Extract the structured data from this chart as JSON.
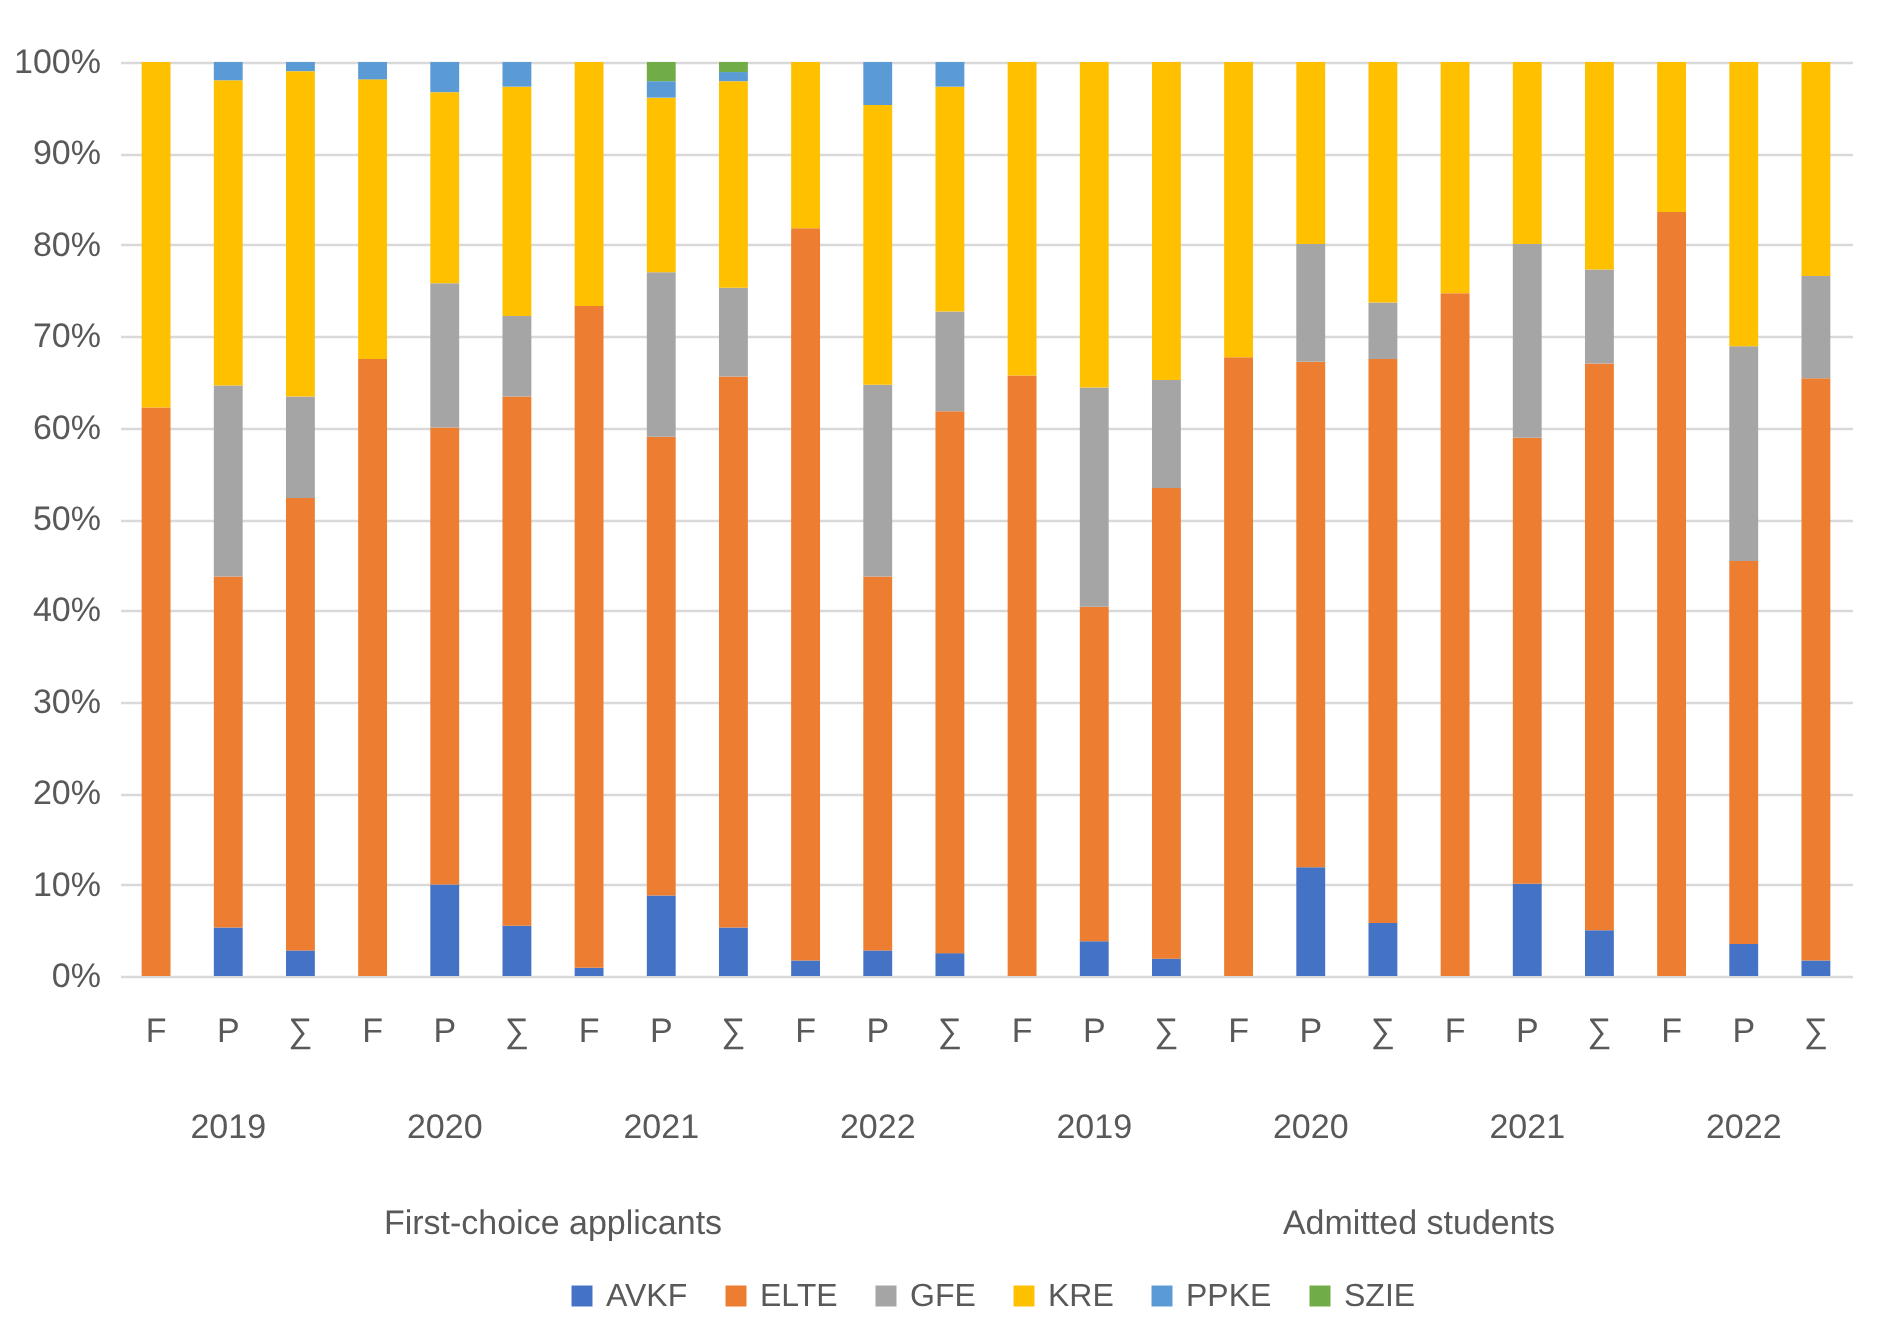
{
  "chart_data": {
    "type": "bar",
    "stacked": true,
    "categories": [
      "F",
      "P",
      "∑",
      "F",
      "P",
      "∑",
      "F",
      "P",
      "∑",
      "F",
      "P",
      "∑",
      "F",
      "P",
      "∑",
      "F",
      "P",
      "∑",
      "F",
      "P",
      "∑",
      "F",
      "P",
      "∑"
    ],
    "series": [
      {
        "name": "AVKF",
        "color": "#4472c4",
        "values": [
          0,
          5.3,
          2.8,
          0,
          10,
          5.5,
          0.9,
          8.8,
          5.3,
          1.7,
          2.8,
          2.5,
          0,
          3.8,
          1.9,
          0,
          11.9,
          5.8,
          0,
          10.1,
          5,
          0,
          3.5,
          1.7
        ]
      },
      {
        "name": "ELTE",
        "color": "#ed7d31",
        "values": [
          62.2,
          38.4,
          49.5,
          67.5,
          50,
          57.9,
          72.4,
          50.2,
          60.3,
          80.1,
          40.9,
          59.3,
          65.7,
          36.6,
          51.5,
          67.7,
          55.3,
          61.7,
          74.7,
          48.8,
          62,
          83.6,
          41.9,
          63.7
        ]
      },
      {
        "name": "GFE",
        "color": "#a5a5a5",
        "values": [
          0,
          20.9,
          11.1,
          0,
          15.8,
          8.8,
          0,
          18,
          9.7,
          0,
          21,
          10.9,
          0,
          24,
          11.8,
          0,
          12.9,
          6.2,
          0,
          21.2,
          10.3,
          0,
          23.5,
          11.2
        ]
      },
      {
        "name": "KRE",
        "color": "#ffc000",
        "values": [
          37.8,
          33.4,
          35.6,
          30.6,
          20.9,
          25.1,
          26.7,
          19.1,
          22.6,
          18.2,
          30.6,
          24.6,
          34.3,
          35.6,
          34.8,
          32.3,
          19.9,
          26.3,
          25.3,
          19.9,
          22.7,
          16.4,
          31.1,
          23.4
        ]
      },
      {
        "name": "PPKE",
        "color": "#5b9bd5",
        "values": [
          0,
          2,
          1,
          1.9,
          3.3,
          2.7,
          0,
          1.8,
          1,
          0,
          4.7,
          2.7,
          0,
          0,
          0,
          0,
          0,
          0,
          0,
          0,
          0,
          0,
          0,
          0
        ]
      },
      {
        "name": "SZIE",
        "color": "#70ad47",
        "values": [
          0,
          0,
          0,
          0,
          0,
          0,
          0,
          2.1,
          1.1,
          0,
          0,
          0,
          0,
          0,
          0,
          0,
          0,
          0,
          0,
          0,
          0,
          0,
          0,
          0
        ]
      }
    ],
    "annotations": [
      "2019",
      "2020",
      "2021",
      "2022",
      "2019",
      "2020",
      "2021",
      "2022",
      "First-choice applicants",
      "Admitted students"
    ],
    "ylim": [
      0,
      100
    ],
    "yticks": [
      {
        "value": 0,
        "label": "0%"
      },
      {
        "value": 10,
        "label": "10%"
      },
      {
        "value": 20,
        "label": "20%"
      },
      {
        "value": 30,
        "label": "30%"
      },
      {
        "value": 40,
        "label": "40%"
      },
      {
        "value": 50,
        "label": "50%"
      },
      {
        "value": 60,
        "label": "60%"
      },
      {
        "value": 70,
        "label": "70%"
      },
      {
        "value": 80,
        "label": "80%"
      },
      {
        "value": 90,
        "label": "90%"
      },
      {
        "value": 100,
        "label": "100%"
      }
    ],
    "grid": "y",
    "legend": "bottom"
  }
}
